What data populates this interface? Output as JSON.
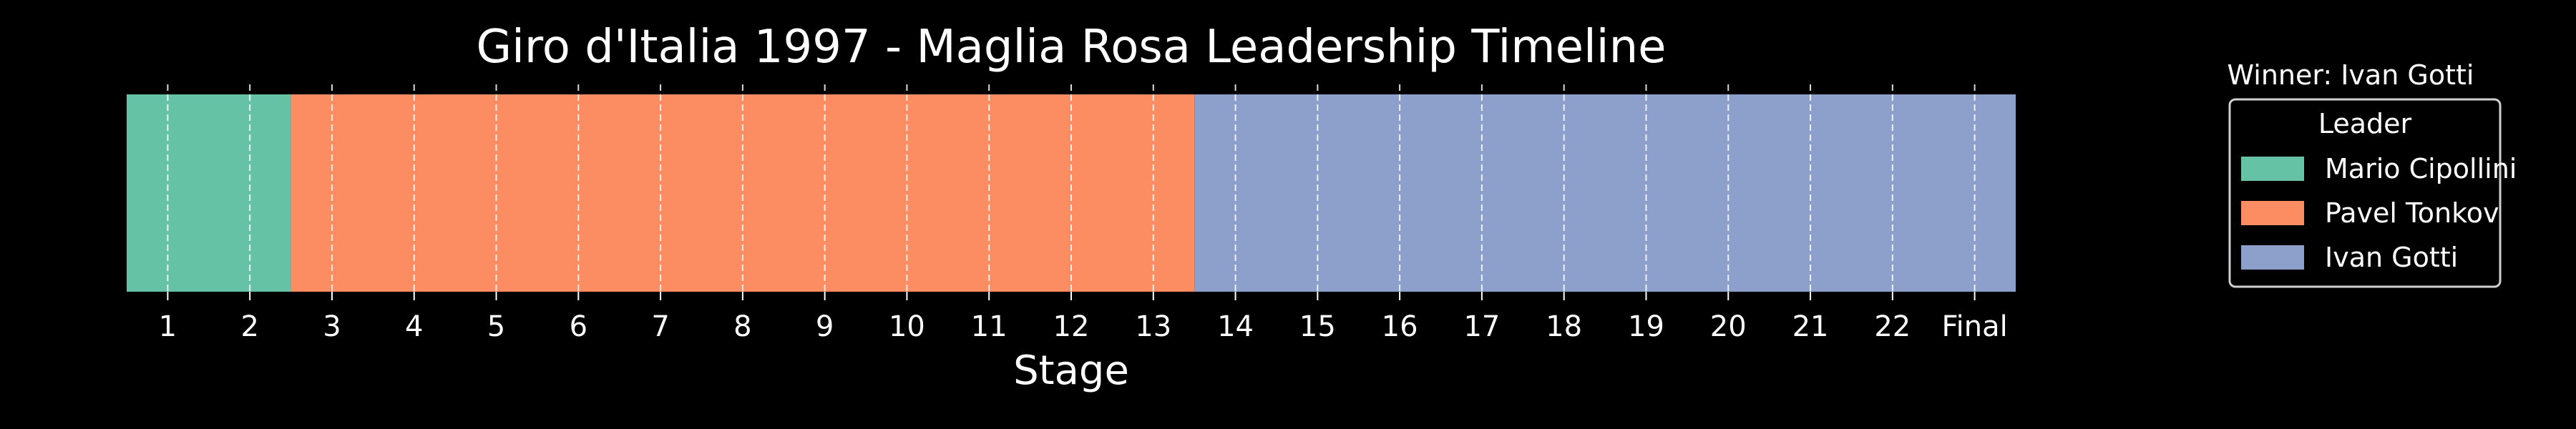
{
  "chart_data": {
    "type": "bar",
    "title": "Giro d'Italia 1997 - Maglia Rosa Leadership Timeline",
    "xlabel": "Stage",
    "ylabel": "",
    "categories": [
      "1",
      "2",
      "3",
      "4",
      "5",
      "6",
      "7",
      "8",
      "9",
      "10",
      "11",
      "12",
      "13",
      "14",
      "15",
      "16",
      "17",
      "18",
      "19",
      "20",
      "21",
      "22",
      "Final"
    ],
    "segments": [
      {
        "leader": "Mario Cipollini",
        "start": "1",
        "end": "2",
        "color": "#66c2a5"
      },
      {
        "leader": "Pavel Tonkov",
        "start": "3",
        "end": "13",
        "color": "#fc8d62"
      },
      {
        "leader": "Ivan Gotti",
        "start": "14",
        "end": "Final",
        "color": "#8da0cb"
      }
    ],
    "grid": true,
    "legend": {
      "placement": "right",
      "title": "Leader",
      "entries": [
        {
          "label": "Mario Cipollini",
          "color": "#66c2a5"
        },
        {
          "label": "Pavel Tonkov",
          "color": "#fc8d62"
        },
        {
          "label": "Ivan Gotti",
          "color": "#8da0cb"
        }
      ]
    },
    "annotation": "Winner: Ivan Gotti"
  },
  "colors": {
    "background": "#000000",
    "text": "#ffffff",
    "grid": "#ffffff"
  }
}
